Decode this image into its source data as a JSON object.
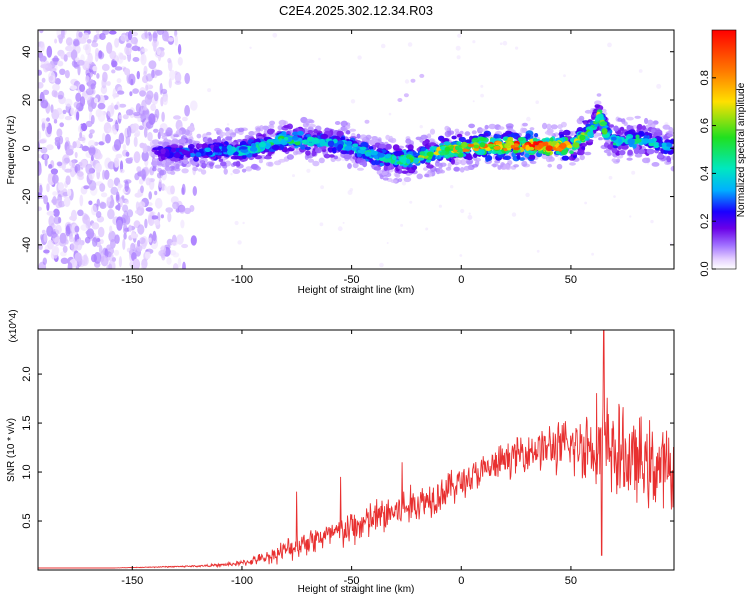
{
  "title": "C2E4.2025.302.12.34.R03",
  "colors": {
    "snr_line": "#e83030",
    "band_colormap": [
      "#ffffff",
      "#e6d2ff",
      "#a070ff",
      "#6a00e8",
      "#1a00ff",
      "#00b0ff",
      "#00e8c0",
      "#20e020",
      "#ffe000",
      "#ff8000",
      "#ff0000"
    ]
  },
  "chart_data": [
    {
      "type": "heatmap",
      "name": "spectrogram",
      "xlabel": "Height of straight line (km)",
      "ylabel": "Frequency (Hz)",
      "xlim": [
        -193,
        97
      ],
      "ylim": [
        -50,
        49
      ],
      "xticks": [
        -150,
        -100,
        -50,
        0,
        50
      ],
      "xtick_labels": [
        "-150",
        "-100",
        "-50",
        "0",
        "50"
      ],
      "yticks": [
        -40,
        -20,
        0,
        20,
        40
      ],
      "ytick_labels": [
        "-40",
        "-20",
        "0",
        "20",
        "40"
      ],
      "colorbar": {
        "label": "Normalized spectral amplitude",
        "range": [
          0,
          1
        ],
        "ticks": [
          0.0,
          0.2,
          0.4,
          0.6,
          0.8
        ],
        "tick_labels": [
          "0.0",
          "0.2",
          "0.4",
          "0.6",
          "0.8"
        ]
      },
      "ridge_x": [
        -140,
        -130,
        -120,
        -110,
        -100,
        -90,
        -80,
        -70,
        -60,
        -50,
        -40,
        -30,
        -20,
        -10,
        0,
        10,
        20,
        30,
        40,
        50,
        55,
        60,
        63,
        66,
        70,
        80,
        90,
        97
      ],
      "ridge_y": [
        -1,
        -2,
        -2,
        -1,
        -1,
        1,
        4,
        3,
        2,
        1,
        -3,
        -5,
        -4,
        -1,
        0,
        1,
        1,
        1,
        1,
        1,
        4,
        8,
        14,
        6,
        3,
        4,
        2,
        0
      ],
      "ridge_amplitude": [
        0.35,
        0.4,
        0.45,
        0.5,
        0.55,
        0.6,
        0.65,
        0.6,
        0.55,
        0.55,
        0.6,
        0.65,
        0.7,
        0.75,
        0.85,
        0.9,
        0.95,
        0.98,
        0.95,
        0.8,
        0.75,
        0.7,
        0.75,
        0.65,
        0.6,
        0.6,
        0.55,
        0.5
      ],
      "noise_region_x": [
        -193,
        -120
      ]
    },
    {
      "type": "line",
      "name": "snr",
      "xlabel": "Height of straight line (km)",
      "ylabel": "SNR (10 * v/v)",
      "y_multiplier": "(x10^4)",
      "xlim": [
        -193,
        97
      ],
      "ylim": [
        0,
        2.45
      ],
      "xticks": [
        -150,
        -100,
        -50,
        0,
        50
      ],
      "xtick_labels": [
        "-150",
        "-100",
        "-50",
        "0",
        "50"
      ],
      "yticks": [
        0.5,
        1.0,
        1.5,
        2.0
      ],
      "ytick_labels": [
        "0.5",
        "1.0",
        "1.5",
        "2.0"
      ],
      "x": [
        -193,
        -180,
        -160,
        -140,
        -120,
        -110,
        -100,
        -90,
        -80,
        -70,
        -60,
        -50,
        -40,
        -30,
        -20,
        -10,
        0,
        10,
        20,
        30,
        40,
        50,
        60,
        65,
        70,
        80,
        90,
        97
      ],
      "y": [
        0.02,
        0.02,
        0.02,
        0.03,
        0.04,
        0.05,
        0.07,
        0.12,
        0.2,
        0.3,
        0.35,
        0.42,
        0.52,
        0.6,
        0.68,
        0.78,
        0.9,
        1.0,
        1.12,
        1.22,
        1.25,
        1.25,
        1.3,
        1.3,
        1.2,
        1.1,
        1.05,
        1.0
      ],
      "noise_amp": [
        0.0,
        0.0,
        0.0,
        0.005,
        0.01,
        0.015,
        0.03,
        0.06,
        0.12,
        0.15,
        0.15,
        0.2,
        0.2,
        0.22,
        0.2,
        0.2,
        0.18,
        0.18,
        0.18,
        0.2,
        0.25,
        0.3,
        0.45,
        0.55,
        0.5,
        0.45,
        0.45,
        0.4
      ],
      "spikes": [
        {
          "x": -75,
          "y": 0.8
        },
        {
          "x": -55,
          "y": 0.95
        },
        {
          "x": -27,
          "y": 1.1
        },
        {
          "x": 65,
          "y": 2.45
        },
        {
          "x": 64,
          "y": 0.15
        }
      ]
    }
  ]
}
